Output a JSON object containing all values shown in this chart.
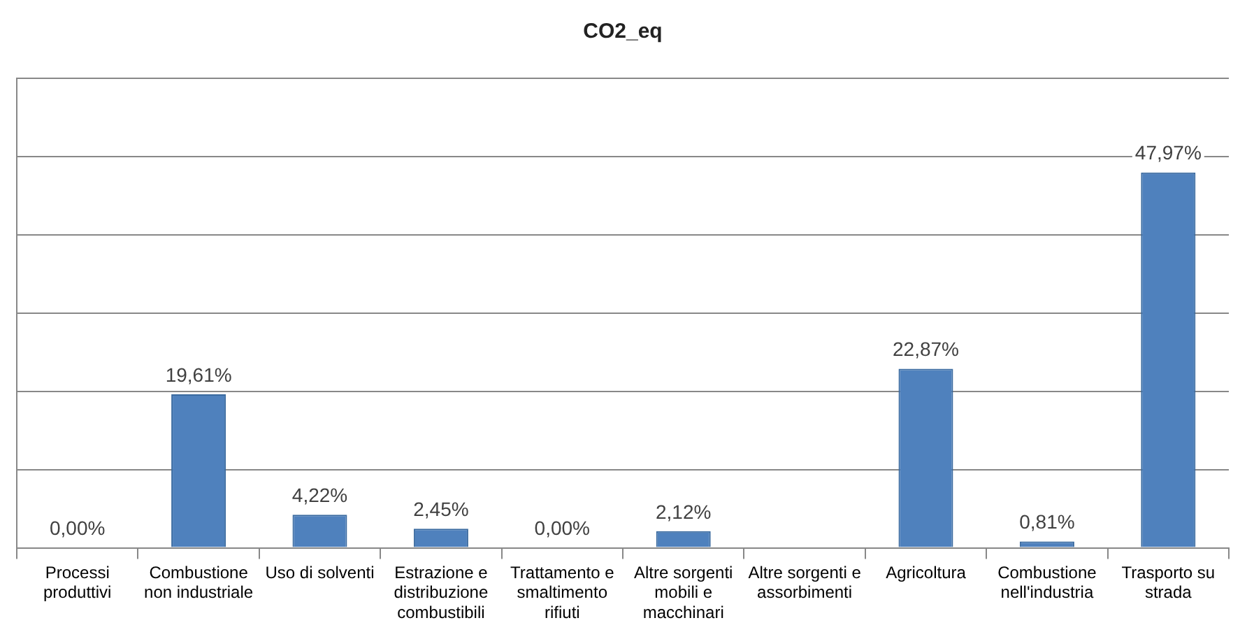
{
  "chart_data": {
    "type": "bar",
    "title": "CO2_eq",
    "categories": [
      "Processi produttivi",
      "Combustione non industriale",
      "Uso di solventi",
      "Estrazione e distribuzione combustibili",
      "Trattamento e smaltimento rifiuti",
      "Altre sorgenti mobili e macchinari",
      "Altre sorgenti e assorbimenti",
      "Agricoltura",
      "Combustione nell'industria",
      "Trasporto su strada"
    ],
    "values": [
      0,
      19.61,
      4.22,
      2.45,
      0,
      2.12,
      0,
      22.87,
      0.81,
      47.97
    ],
    "value_labels": [
      "0,00%",
      "19,61%",
      "4,22%",
      "2,45%",
      "0,00%",
      "2,12%",
      null,
      "22,87%",
      "0,81%",
      "47,97%"
    ],
    "color": "#4f81bd",
    "ylim": [
      0,
      60
    ],
    "yticks": [
      {
        "value": 0,
        "label": null
      },
      {
        "value": 10,
        "label": null
      },
      {
        "value": 20,
        "label": null
      },
      {
        "value": 30,
        "label": null
      },
      {
        "value": 40,
        "label": null
      },
      {
        "value": 50,
        "label": null
      },
      {
        "value": 60,
        "label": null
      }
    ],
    "tick_labels": "x",
    "grid": "y",
    "legend": false
  }
}
